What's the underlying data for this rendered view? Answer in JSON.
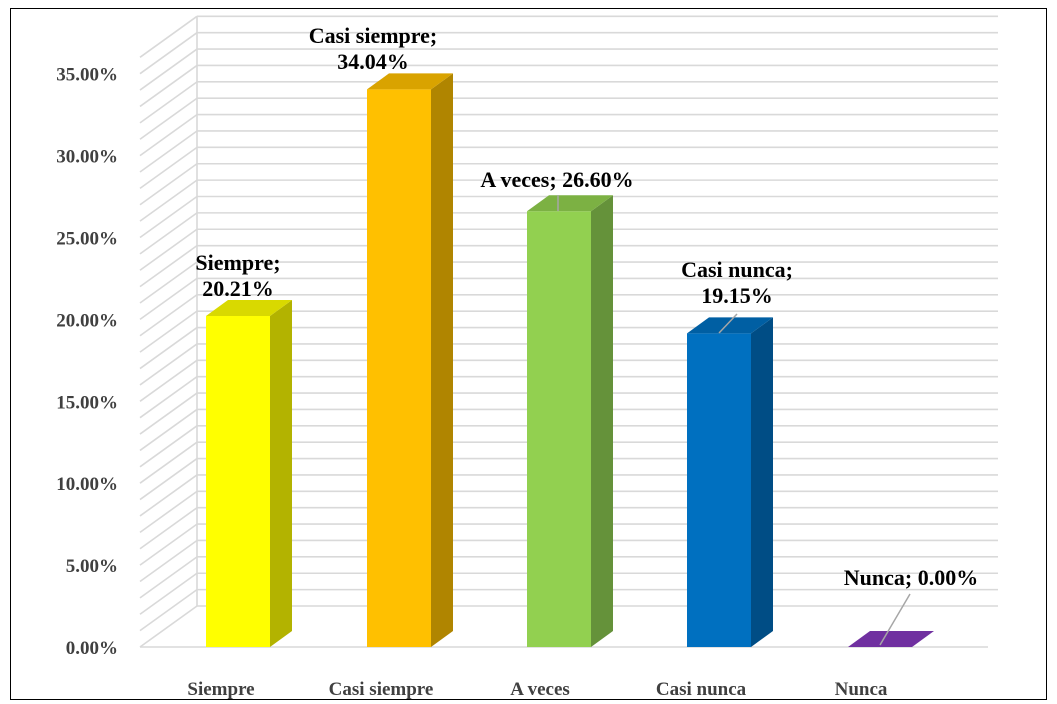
{
  "chart_data": {
    "type": "bar",
    "title": "",
    "xlabel": "",
    "ylabel": "",
    "categories": [
      "Siempre",
      "Casi siempre",
      "A veces",
      "Casi nunca",
      "Nunca"
    ],
    "values": [
      20.21,
      34.04,
      26.6,
      19.15,
      0.0
    ],
    "value_labels": [
      "20.21%",
      "34.04%",
      "26.60%",
      "19.15%",
      "0.00%"
    ],
    "data_labels": [
      [
        "Siempre;",
        "20.21%"
      ],
      [
        "Casi siempre;",
        "34.04%"
      ],
      [
        "A veces; 26.60%"
      ],
      [
        "Casi nunca;",
        "19.15%"
      ],
      [
        "Nunca; 0.00%"
      ]
    ],
    "yticks": [
      "0.00%",
      "5.00%",
      "10.00%",
      "15.00%",
      "20.00%",
      "25.00%",
      "30.00%",
      "35.00%"
    ],
    "ylim": [
      0,
      37
    ],
    "grid": true,
    "legend": "none",
    "style": "3d-column",
    "colors": {
      "front": [
        "#FFFF00",
        "#FFC000",
        "#92D050",
        "#0070C0",
        "#7030A0"
      ],
      "side": [
        "#B3B300",
        "#B08500",
        "#65923A",
        "#004D85",
        "#4E2270"
      ],
      "top": [
        "#D9D900",
        "#D9A300",
        "#7CB143",
        "#005FA3",
        "#5F288A"
      ],
      "gridline": "#D9D9D9",
      "axis_text": "#404040"
    }
  }
}
